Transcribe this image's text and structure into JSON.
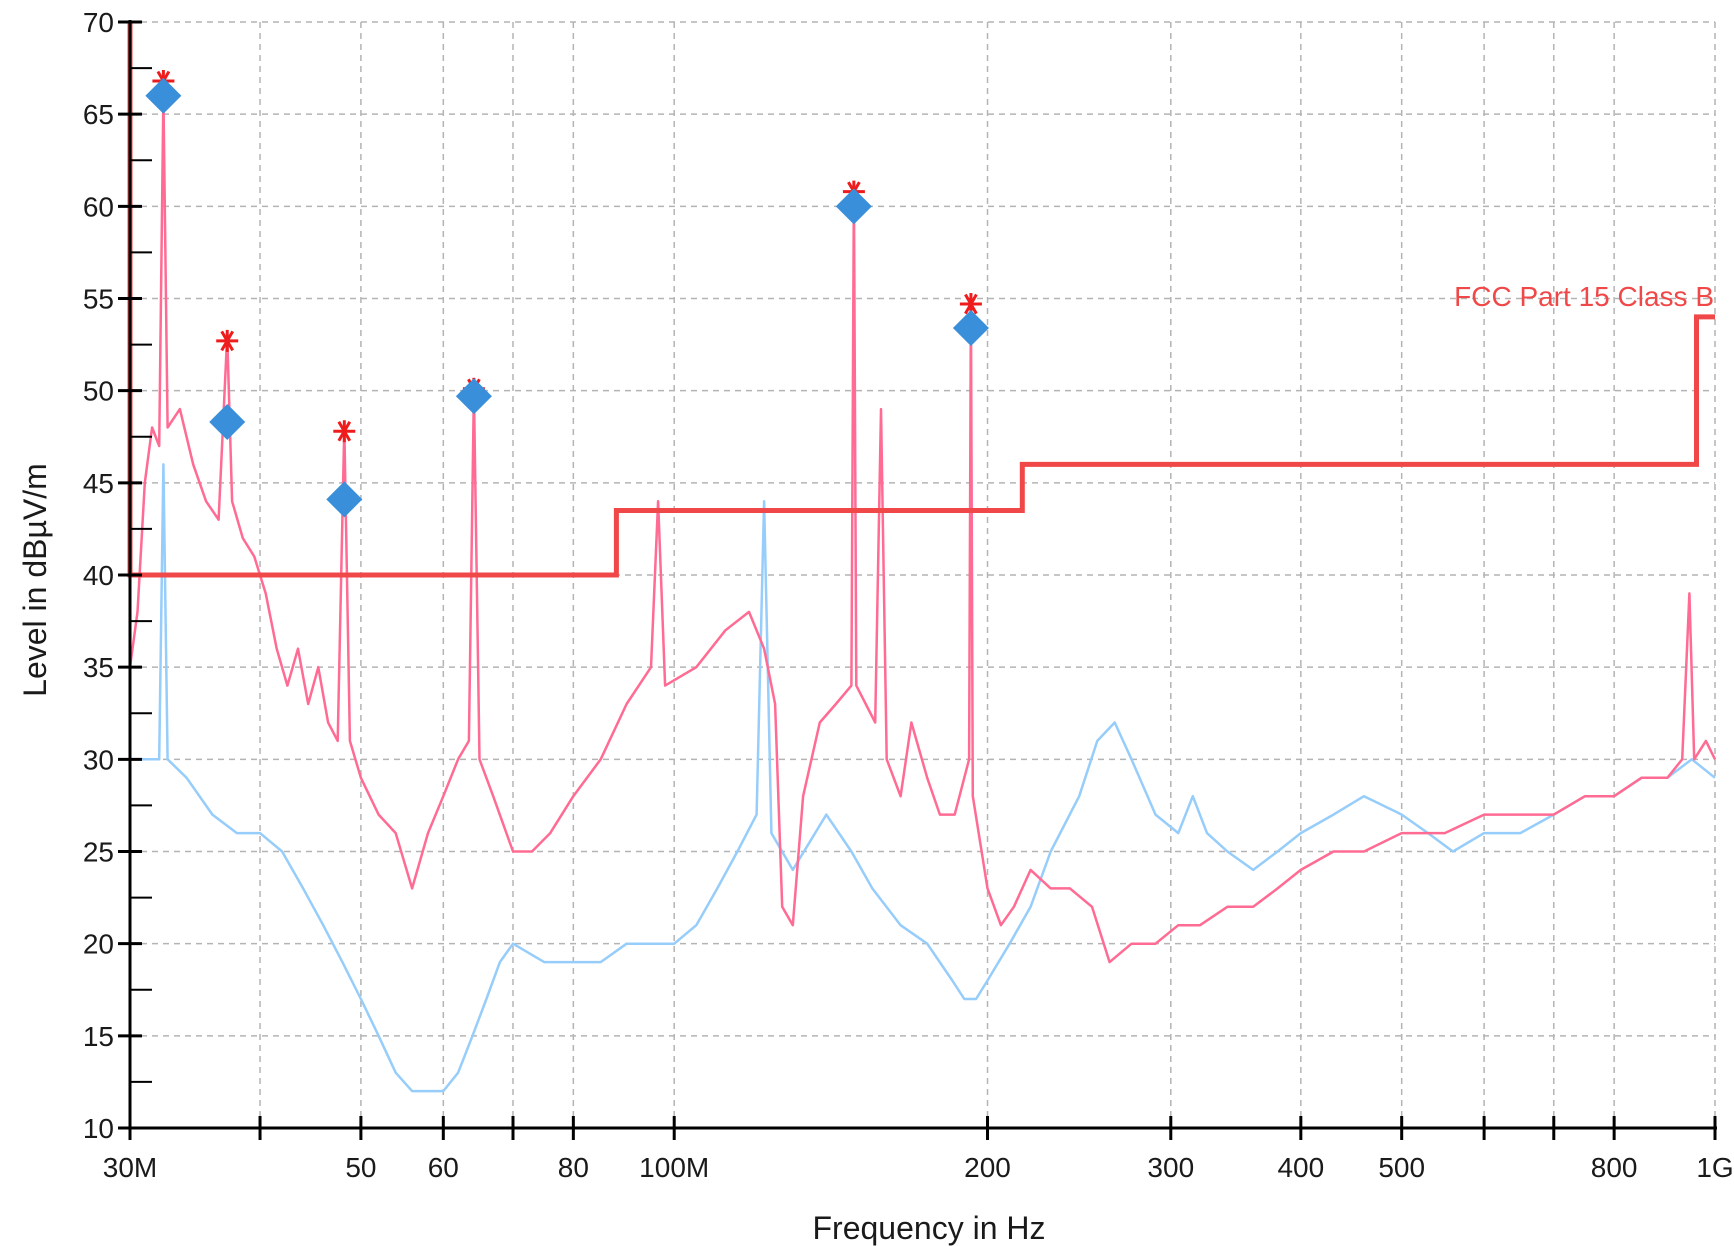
{
  "chart_data": {
    "type": "line",
    "xlabel": "Frequency in Hz",
    "ylabel": "Level in dBµV/m",
    "xscale": "log",
    "xlim": [
      30000000,
      1000000000
    ],
    "ylim": [
      10,
      70
    ],
    "grid": true,
    "y_ticks": [
      {
        "value": 10,
        "label": "10"
      },
      {
        "value": 15,
        "label": "15"
      },
      {
        "value": 20,
        "label": "20"
      },
      {
        "value": 25,
        "label": "25"
      },
      {
        "value": 30,
        "label": "30"
      },
      {
        "value": 35,
        "label": "35"
      },
      {
        "value": 40,
        "label": "40"
      },
      {
        "value": 45,
        "label": "45"
      },
      {
        "value": 50,
        "label": "50"
      },
      {
        "value": 55,
        "label": "55"
      },
      {
        "value": 60,
        "label": "60"
      },
      {
        "value": 65,
        "label": "65"
      },
      {
        "value": 70,
        "label": "70"
      }
    ],
    "x_ticks": [
      {
        "value": 30000000,
        "label": "30M"
      },
      {
        "value": 40000000,
        "label": ""
      },
      {
        "value": 50000000,
        "label": "50"
      },
      {
        "value": 60000000,
        "label": "60"
      },
      {
        "value": 70000000,
        "label": ""
      },
      {
        "value": 80000000,
        "label": "80"
      },
      {
        "value": 100000000,
        "label": "100M"
      },
      {
        "value": 200000000,
        "label": "200"
      },
      {
        "value": 300000000,
        "label": "300"
      },
      {
        "value": 400000000,
        "label": "400"
      },
      {
        "value": 500000000,
        "label": "500"
      },
      {
        "value": 600000000,
        "label": ""
      },
      {
        "value": 700000000,
        "label": ""
      },
      {
        "value": 800000000,
        "label": "800"
      },
      {
        "value": 1000000000,
        "label": "1G"
      }
    ],
    "limit_line": {
      "label": "FCC Part 15 Class B",
      "color": "#f04848",
      "points": [
        [
          30000000,
          70
        ],
        [
          30000000,
          40
        ],
        [
          88000000,
          40
        ],
        [
          88000000,
          43.5
        ],
        [
          216000000,
          43.5
        ],
        [
          216000000,
          46
        ],
        [
          960000000,
          46
        ],
        [
          960000000,
          54
        ],
        [
          1000000000,
          54
        ]
      ]
    },
    "series": [
      {
        "color": "#ff6b93",
        "points": [
          [
            30000000,
            35
          ],
          [
            30500000,
            38
          ],
          [
            31000000,
            45
          ],
          [
            31500000,
            48
          ],
          [
            32000000,
            47
          ],
          [
            32300000,
            66
          ],
          [
            32600000,
            48
          ],
          [
            33500000,
            49
          ],
          [
            34500000,
            46
          ],
          [
            35500000,
            44
          ],
          [
            36500000,
            43
          ],
          [
            37200000,
            53
          ],
          [
            37600000,
            44
          ],
          [
            38500000,
            42
          ],
          [
            39500000,
            41
          ],
          [
            40500000,
            39
          ],
          [
            41500000,
            36
          ],
          [
            42500000,
            34
          ],
          [
            43500000,
            36
          ],
          [
            44500000,
            33
          ],
          [
            45500000,
            35
          ],
          [
            46500000,
            32
          ],
          [
            47500000,
            31
          ],
          [
            48200000,
            48
          ],
          [
            48800000,
            31
          ],
          [
            50000000,
            29
          ],
          [
            52000000,
            27
          ],
          [
            54000000,
            26
          ],
          [
            56000000,
            23
          ],
          [
            58000000,
            26
          ],
          [
            60000000,
            28
          ],
          [
            62000000,
            30
          ],
          [
            63500000,
            31
          ],
          [
            64200000,
            50
          ],
          [
            65000000,
            30
          ],
          [
            67000000,
            28
          ],
          [
            70000000,
            25
          ],
          [
            73000000,
            25
          ],
          [
            76000000,
            26
          ],
          [
            80000000,
            28
          ],
          [
            85000000,
            30
          ],
          [
            90000000,
            33
          ],
          [
            95000000,
            35
          ],
          [
            96500000,
            44
          ],
          [
            98000000,
            34
          ],
          [
            105000000,
            35
          ],
          [
            112000000,
            37
          ],
          [
            118000000,
            38
          ],
          [
            122000000,
            36
          ],
          [
            125000000,
            33
          ],
          [
            127000000,
            22
          ],
          [
            130000000,
            21
          ],
          [
            133000000,
            28
          ],
          [
            138000000,
            32
          ],
          [
            143000000,
            33
          ],
          [
            148000000,
            34
          ],
          [
            148800000,
            61
          ],
          [
            149600000,
            34
          ],
          [
            156000000,
            32
          ],
          [
            158000000,
            49
          ],
          [
            160000000,
            30
          ],
          [
            165000000,
            28
          ],
          [
            169000000,
            32
          ],
          [
            175000000,
            29
          ],
          [
            180000000,
            27
          ],
          [
            186000000,
            27
          ],
          [
            192000000,
            30
          ],
          [
            192800000,
            55
          ],
          [
            193600000,
            28
          ],
          [
            200000000,
            23
          ],
          [
            206000000,
            21
          ],
          [
            212000000,
            22
          ],
          [
            220000000,
            24
          ],
          [
            230000000,
            23
          ],
          [
            240000000,
            23
          ],
          [
            252000000,
            22
          ],
          [
            262000000,
            19
          ],
          [
            275000000,
            20
          ],
          [
            290000000,
            20
          ],
          [
            305000000,
            21
          ],
          [
            320000000,
            21
          ],
          [
            340000000,
            22
          ],
          [
            360000000,
            22
          ],
          [
            380000000,
            23
          ],
          [
            400000000,
            24
          ],
          [
            430000000,
            25
          ],
          [
            460000000,
            25
          ],
          [
            500000000,
            26
          ],
          [
            550000000,
            26
          ],
          [
            600000000,
            27
          ],
          [
            650000000,
            27
          ],
          [
            700000000,
            27
          ],
          [
            750000000,
            28
          ],
          [
            800000000,
            28
          ],
          [
            850000000,
            29
          ],
          [
            900000000,
            29
          ],
          [
            930000000,
            30
          ],
          [
            945000000,
            39
          ],
          [
            955000000,
            30
          ],
          [
            980000000,
            31
          ],
          [
            1000000000,
            30
          ]
        ]
      },
      {
        "color": "#96cdfa",
        "points": [
          [
            30000000,
            30
          ],
          [
            31000000,
            30
          ],
          [
            32000000,
            30
          ],
          [
            32300000,
            46
          ],
          [
            32600000,
            30
          ],
          [
            34000000,
            29
          ],
          [
            36000000,
            27
          ],
          [
            38000000,
            26
          ],
          [
            40000000,
            26
          ],
          [
            42000000,
            25
          ],
          [
            44000000,
            23
          ],
          [
            46000000,
            21
          ],
          [
            48000000,
            19
          ],
          [
            50000000,
            17
          ],
          [
            52000000,
            15
          ],
          [
            54000000,
            13
          ],
          [
            56000000,
            12
          ],
          [
            58000000,
            12
          ],
          [
            60000000,
            12
          ],
          [
            62000000,
            13
          ],
          [
            64000000,
            15
          ],
          [
            66000000,
            17
          ],
          [
            68000000,
            19
          ],
          [
            70000000,
            20
          ],
          [
            75000000,
            19
          ],
          [
            80000000,
            19
          ],
          [
            85000000,
            19
          ],
          [
            90000000,
            20
          ],
          [
            95000000,
            20
          ],
          [
            100000000,
            20
          ],
          [
            105000000,
            21
          ],
          [
            110000000,
            23
          ],
          [
            115000000,
            25
          ],
          [
            120000000,
            27
          ],
          [
            122000000,
            44
          ],
          [
            124000000,
            26
          ],
          [
            130000000,
            24
          ],
          [
            140000000,
            27
          ],
          [
            148000000,
            25
          ],
          [
            155000000,
            23
          ],
          [
            165000000,
            21
          ],
          [
            175000000,
            20
          ],
          [
            185000000,
            18
          ],
          [
            190000000,
            17
          ],
          [
            195000000,
            17
          ],
          [
            200000000,
            18
          ],
          [
            210000000,
            20
          ],
          [
            220000000,
            22
          ],
          [
            230000000,
            25
          ],
          [
            245000000,
            28
          ],
          [
            255000000,
            31
          ],
          [
            265000000,
            32
          ],
          [
            275000000,
            30
          ],
          [
            290000000,
            27
          ],
          [
            305000000,
            26
          ],
          [
            315000000,
            28
          ],
          [
            325000000,
            26
          ],
          [
            340000000,
            25
          ],
          [
            360000000,
            24
          ],
          [
            380000000,
            25
          ],
          [
            400000000,
            26
          ],
          [
            430000000,
            27
          ],
          [
            460000000,
            28
          ],
          [
            500000000,
            27
          ],
          [
            530000000,
            26
          ],
          [
            560000000,
            25
          ],
          [
            600000000,
            26
          ],
          [
            650000000,
            26
          ],
          [
            700000000,
            27
          ],
          [
            750000000,
            28
          ],
          [
            800000000,
            28
          ],
          [
            850000000,
            29
          ],
          [
            900000000,
            29
          ],
          [
            950000000,
            30
          ],
          [
            1000000000,
            29
          ]
        ]
      }
    ],
    "peak_markers": {
      "star_color": "#ee1c1c",
      "diamond_color": "#3a8fda",
      "points": [
        {
          "x": 32300000,
          "peak": 66.8,
          "value": 66
        },
        {
          "x": 37200000,
          "peak": 52.7,
          "value": 48.3
        },
        {
          "x": 48200000,
          "peak": 47.8,
          "value": 44.1
        },
        {
          "x": 64200000,
          "peak": 50.1,
          "value": 49.7
        },
        {
          "x": 148800000,
          "peak": 60.8,
          "value": 60
        },
        {
          "x": 192800000,
          "peak": 54.7,
          "value": 53.4
        }
      ]
    }
  }
}
